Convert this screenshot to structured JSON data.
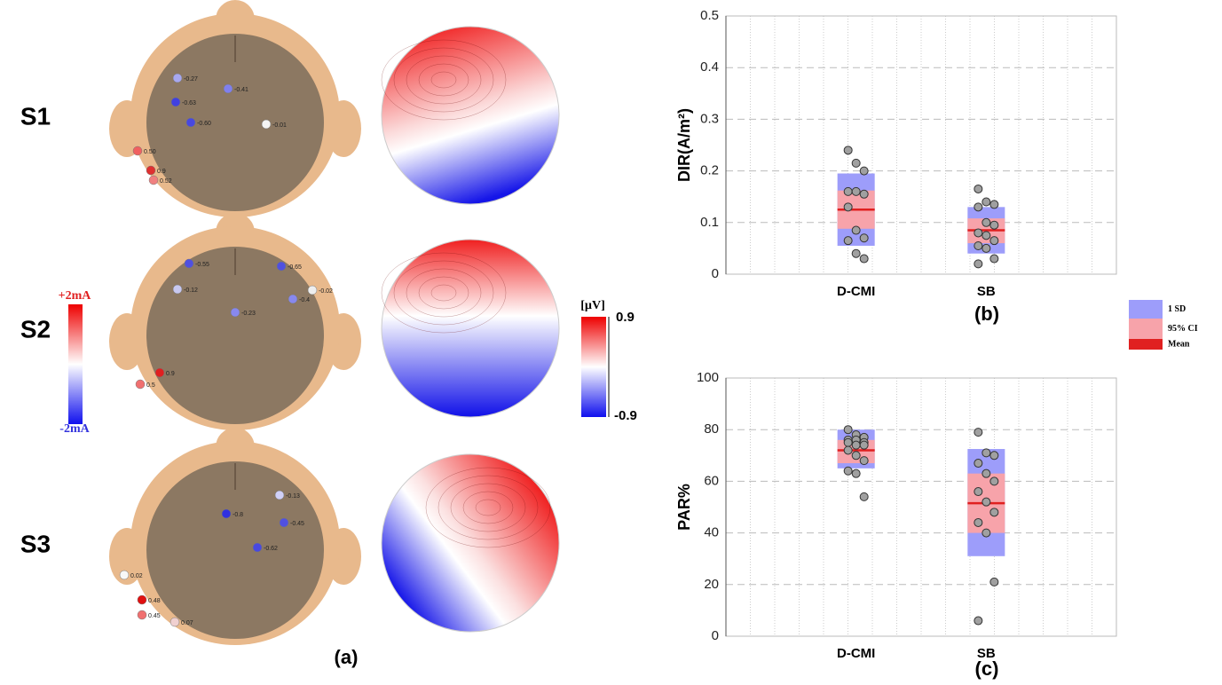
{
  "panel_a": {
    "rows": [
      {
        "label": "S1",
        "electrodes": [
          "-0.27",
          "-0.41",
          "-0.63",
          "-0.60",
          "-0.01",
          "0.50",
          "0.9",
          "0.52"
        ]
      },
      {
        "label": "S2",
        "electrodes": [
          "-0.55",
          "-0.65",
          "-0.12",
          "-0.4",
          "-0.02",
          "-0.23",
          "0.9",
          "0.5"
        ]
      },
      {
        "label": "S3",
        "electrodes": [
          "-0.13",
          "-0.8",
          "-0.45",
          "-0.62",
          "0.02",
          "0.48",
          "0.45",
          "0.07"
        ]
      }
    ],
    "current_scale": {
      "top": "+2mA",
      "bottom": "-2mA"
    },
    "potential_scale": {
      "unit": "[µV]",
      "max": "0.9",
      "min": "-0.9"
    },
    "caption": "(a)"
  },
  "chart_data": [
    {
      "type": "box",
      "caption": "(b)",
      "ylabel": "DIR(A/m²)",
      "categories": [
        "D-CMI",
        "SB"
      ],
      "ylim": [
        0,
        0.5
      ],
      "yticks": [
        0,
        0.1,
        0.2,
        0.3,
        0.4,
        0.5
      ],
      "grid": true,
      "colors": {
        "sd": "#9d9dfa",
        "ci": "#f7a3aa",
        "mean": "#e02020"
      },
      "legend": [
        "1 SD",
        "95% CI",
        "Mean"
      ],
      "boxes": [
        {
          "points": [
            0.24,
            0.215,
            0.2,
            0.16,
            0.16,
            0.155,
            0.13,
            0.085,
            0.07,
            0.065,
            0.04,
            0.03
          ],
          "mean": 0.125,
          "ci": [
            0.088,
            0.162
          ],
          "sd": [
            0.055,
            0.195
          ]
        },
        {
          "points": [
            0.165,
            0.14,
            0.135,
            0.13,
            0.1,
            0.095,
            0.08,
            0.075,
            0.065,
            0.055,
            0.05,
            0.03,
            0.02
          ],
          "mean": 0.085,
          "ci": [
            0.06,
            0.108
          ],
          "sd": [
            0.04,
            0.13
          ]
        }
      ]
    },
    {
      "type": "box",
      "caption": "(c)",
      "ylabel": "PAR%",
      "categories": [
        "D-CMI",
        "SB"
      ],
      "ylim": [
        0,
        100
      ],
      "yticks": [
        0,
        20,
        40,
        60,
        80,
        100
      ],
      "grid": true,
      "colors": {
        "sd": "#9d9dfa",
        "ci": "#f7a3aa",
        "mean": "#e02020"
      },
      "boxes": [
        {
          "points": [
            80,
            78,
            77,
            76,
            76,
            75,
            75,
            74,
            74,
            72,
            70,
            68,
            64,
            63,
            54
          ],
          "mean": 72,
          "ci": [
            67,
            76
          ],
          "sd": [
            65,
            80
          ]
        },
        {
          "points": [
            79,
            71,
            70,
            67,
            63,
            60,
            56,
            52,
            48,
            44,
            40,
            21,
            6
          ],
          "mean": 51.5,
          "ci": [
            40,
            63
          ],
          "sd": [
            31,
            72.5
          ]
        }
      ]
    }
  ]
}
